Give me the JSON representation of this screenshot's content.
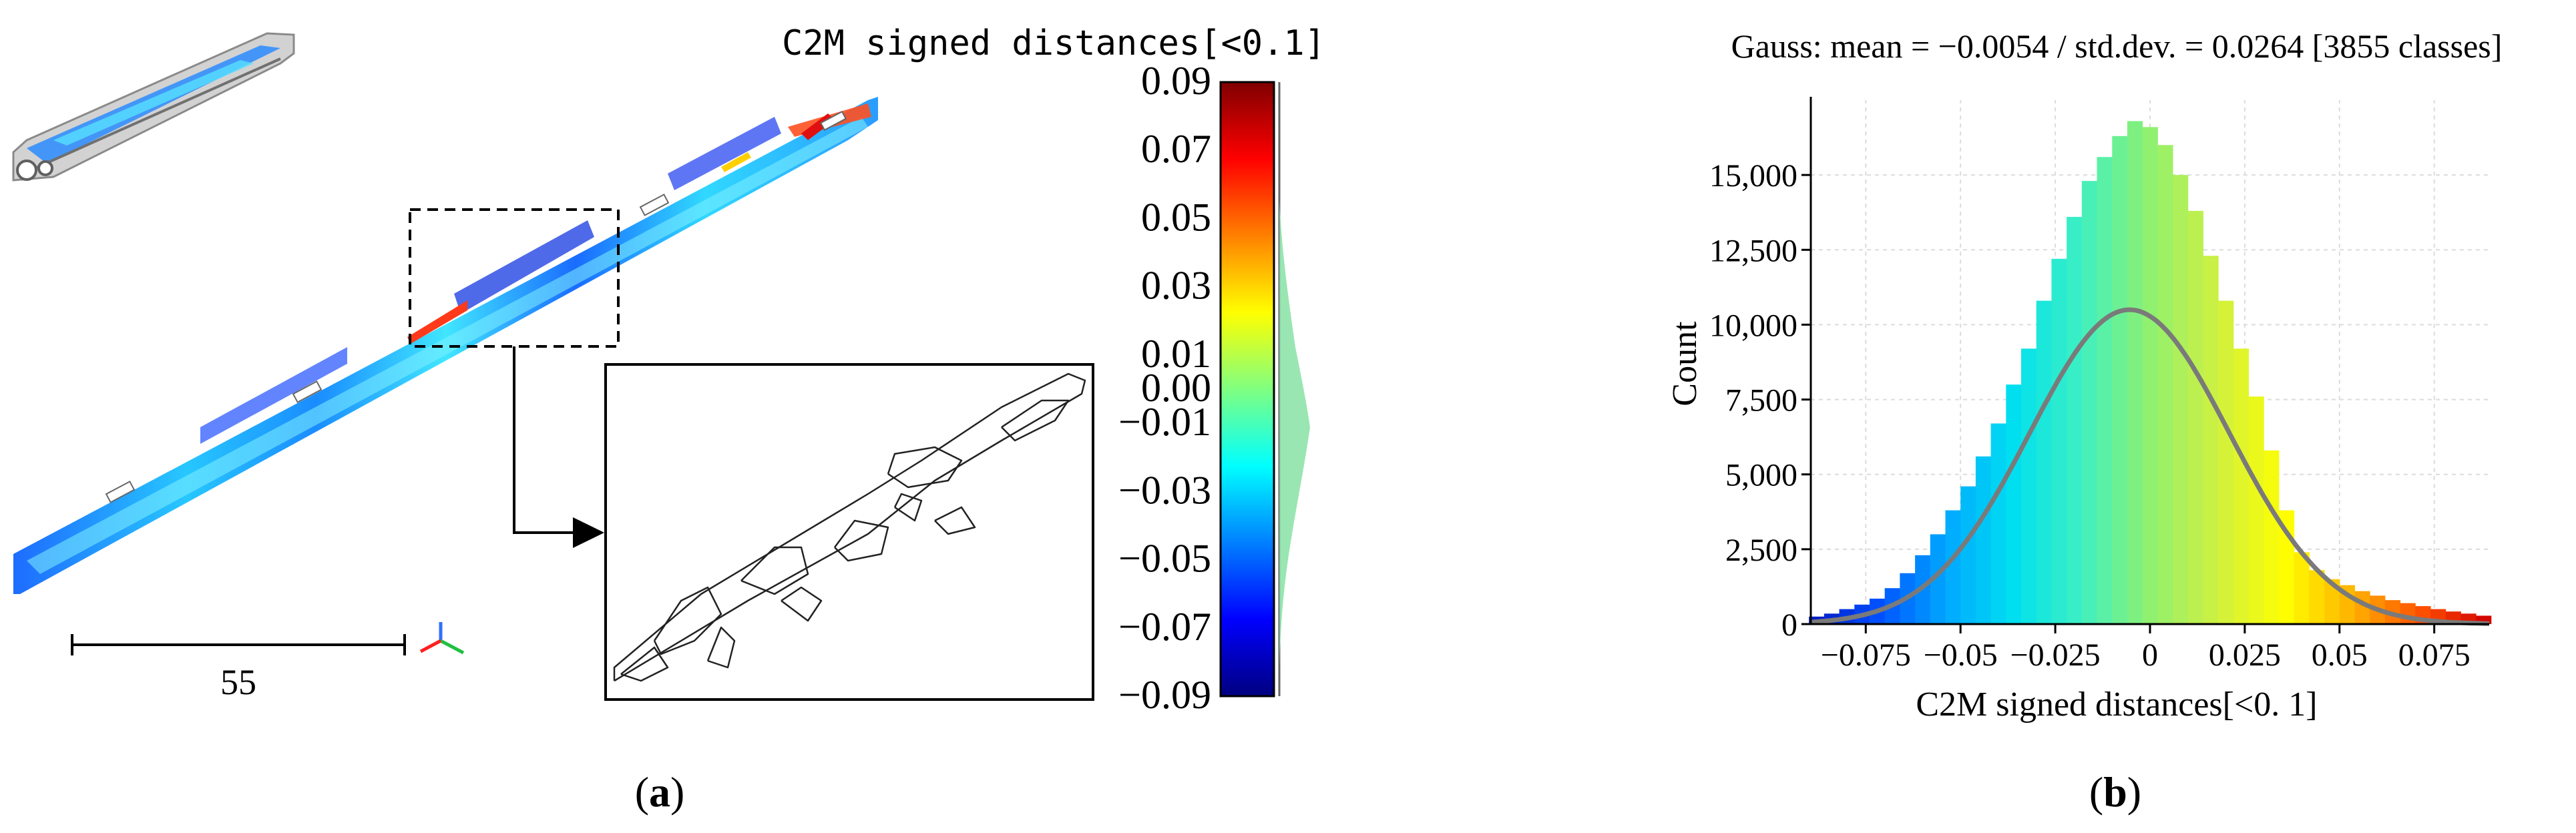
{
  "panel_a": {
    "label_open": "(",
    "label_letter": "a",
    "label_close": ")",
    "scale_bar_value": "55",
    "colorbar": {
      "title": "C2M signed distances[<0.1]",
      "ticks": [
        "0.09",
        "0.07",
        "0.05",
        "0.03",
        "0.01",
        "0.00",
        "−0.01",
        "−0.03",
        "−0.05",
        "−0.07",
        "−0.09"
      ],
      "tick_values": [
        0.09,
        0.07,
        0.05,
        0.03,
        0.01,
        0.0,
        -0.01,
        -0.03,
        -0.05,
        -0.07,
        -0.09
      ],
      "range": [
        -0.09,
        0.09
      ],
      "colors": [
        "#00007f",
        "#0000ff",
        "#0080ff",
        "#00ffff",
        "#80ff80",
        "#ffff00",
        "#ff8000",
        "#ff0000",
        "#7f0000"
      ]
    }
  },
  "panel_b": {
    "label_open": "(",
    "label_letter": "b",
    "label_close": ")"
  },
  "chart_data": {
    "type": "bar",
    "title": "Gauss: mean = −0.0054 / std.dev. = 0.0264 [3855 classes]",
    "xlabel": "C2M signed distances[<0. 1]",
    "ylabel": "Count",
    "x_tick_labels": [
      "−0.075",
      "−0.05",
      "−0.025",
      "0",
      "0.025",
      "0.05",
      "0.075"
    ],
    "x_ticks": [
      -0.075,
      -0.05,
      -0.025,
      0,
      0.025,
      0.05,
      0.075
    ],
    "y_tick_labels": [
      "0",
      "2,500",
      "5,000",
      "7,500",
      "10,000",
      "12,500",
      "15,000"
    ],
    "y_ticks": [
      0,
      2500,
      5000,
      7500,
      10000,
      12500,
      15000
    ],
    "xlim": [
      -0.0895,
      0.0895
    ],
    "ylim": [
      0,
      17500
    ],
    "grid": true,
    "gauss_fit": {
      "mean": -0.0054,
      "std": 0.0264,
      "peak": 10500
    },
    "histogram_bins": [
      -0.088,
      -0.084,
      -0.08,
      -0.076,
      -0.072,
      -0.068,
      -0.064,
      -0.06,
      -0.056,
      -0.052,
      -0.048,
      -0.044,
      -0.04,
      -0.036,
      -0.032,
      -0.028,
      -0.024,
      -0.02,
      -0.016,
      -0.012,
      -0.008,
      -0.004,
      0.0,
      0.004,
      0.008,
      0.012,
      0.016,
      0.02,
      0.024,
      0.028,
      0.032,
      0.036,
      0.04,
      0.044,
      0.048,
      0.052,
      0.056,
      0.06,
      0.064,
      0.068,
      0.072,
      0.076,
      0.08,
      0.084,
      0.088
    ],
    "histogram_counts": [
      250,
      350,
      500,
      650,
      850,
      1200,
      1700,
      2300,
      3000,
      3800,
      4600,
      5600,
      6700,
      8000,
      9200,
      10800,
      12200,
      13600,
      14800,
      15600,
      16300,
      16800,
      16600,
      16000,
      15000,
      13800,
      12300,
      10800,
      9200,
      7600,
      5800,
      3800,
      2400,
      1800,
      1500,
      1300,
      1100,
      950,
      800,
      700,
      600,
      500,
      420,
      350,
      280
    ],
    "colorscale": [
      "#0018c0",
      "#0050ff",
      "#00a8ff",
      "#00e0f0",
      "#40f0c0",
      "#90f070",
      "#d0f040",
      "#ffff00",
      "#ffb000",
      "#ff5000",
      "#d00000"
    ]
  }
}
